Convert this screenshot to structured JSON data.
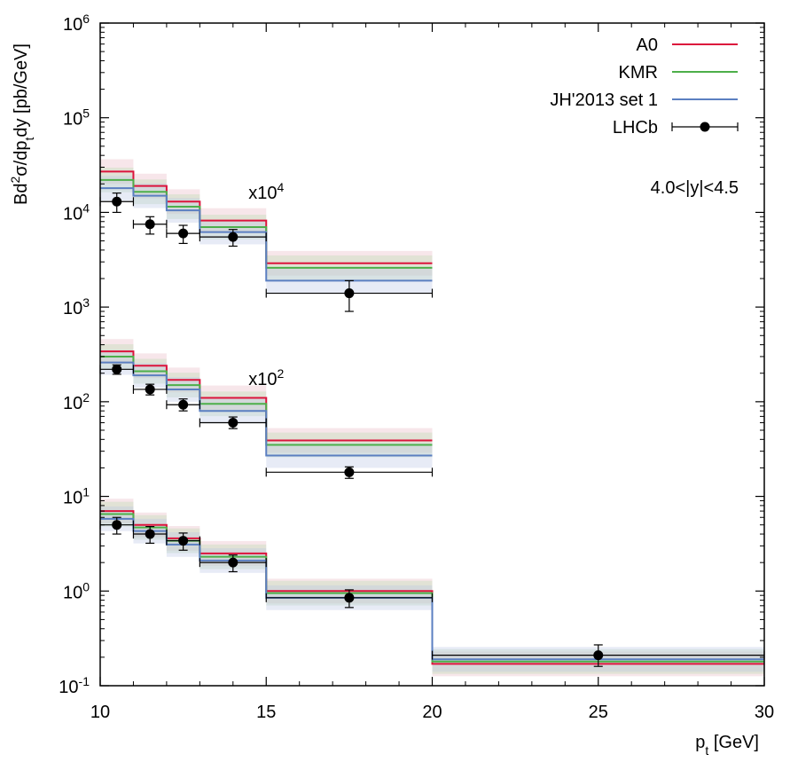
{
  "chart_data": {
    "type": "step",
    "title": "",
    "xlabel_main": "p",
    "xlabel_sub": "t",
    "xlabel_unit": " [GeV]",
    "ylabel_parts": [
      "Bd",
      "2",
      "σ/dp",
      "t",
      "dy [pb/GeV]"
    ],
    "xlim": [
      10,
      30
    ],
    "ylim": [
      0.1,
      1000000
    ],
    "yscale": "log",
    "x_ticks": [
      10,
      15,
      20,
      25,
      30
    ],
    "y_ticks": [
      {
        "value": 0.1,
        "base": "10",
        "exp": "-1"
      },
      {
        "value": 1,
        "base": "10",
        "exp": "0"
      },
      {
        "value": 10,
        "base": "10",
        "exp": "1"
      },
      {
        "value": 100,
        "base": "10",
        "exp": "2"
      },
      {
        "value": 1000,
        "base": "10",
        "exp": "3"
      },
      {
        "value": 10000,
        "base": "10",
        "exp": "4"
      },
      {
        "value": 100000,
        "base": "10",
        "exp": "5"
      },
      {
        "value": 1000000,
        "base": "10",
        "exp": "6"
      }
    ],
    "rapidity_label": "4.0<|y|<4.5",
    "groups": [
      {
        "scale_label_base": "x10",
        "scale_label_exp": "4",
        "label_at": [
          15,
          14000
        ],
        "bins": [
          10,
          11,
          12,
          13,
          15,
          20
        ],
        "series": [
          {
            "name": "A0",
            "values": [
              27000,
              19000,
              13000,
              8200,
              2900
            ]
          },
          {
            "name": "KMR",
            "values": [
              22000,
              16500,
              11500,
              7000,
              2600
            ]
          },
          {
            "name": "JH'2013 set 1",
            "values": [
              18000,
              15000,
              10500,
              6200,
              1900
            ]
          }
        ],
        "data": {
          "x": [
            10.5,
            11.5,
            12.5,
            14,
            17.5
          ],
          "y": [
            13000,
            7500,
            6000,
            5500,
            1400
          ],
          "yerr_low": [
            10000,
            5900,
            4700,
            4400,
            900
          ],
          "yerr_high": [
            16000,
            9000,
            7300,
            6600,
            1900
          ]
        }
      },
      {
        "scale_label_base": "x10",
        "scale_label_exp": "2",
        "label_at": [
          15,
          150
        ],
        "bins": [
          10,
          11,
          12,
          13,
          15,
          20
        ],
        "series": [
          {
            "name": "A0",
            "values": [
              340,
              240,
              170,
              110,
              39
            ]
          },
          {
            "name": "KMR",
            "values": [
              300,
              210,
              150,
              95,
              35
            ]
          },
          {
            "name": "JH'2013 set 1",
            "values": [
              260,
              190,
              135,
              80,
              27
            ]
          }
        ],
        "data": {
          "x": [
            10.5,
            11.5,
            12.5,
            14,
            17.5
          ],
          "y": [
            220,
            135,
            93,
            60,
            18
          ],
          "yerr_low": [
            195,
            118,
            80,
            52,
            15.5
          ],
          "yerr_high": [
            245,
            153,
            107,
            69,
            20.5
          ]
        }
      },
      {
        "scale_label_base": "",
        "scale_label_exp": "",
        "label_at": null,
        "bins": [
          10,
          11,
          12,
          13,
          15,
          20,
          30
        ],
        "series": [
          {
            "name": "A0",
            "values": [
              7.0,
              5.0,
              3.6,
              2.5,
              1.0,
              0.17
            ]
          },
          {
            "name": "KMR",
            "values": [
              6.5,
              4.7,
              3.4,
              2.3,
              0.95,
              0.18
            ]
          },
          {
            "name": "JH'2013 set 1",
            "values": [
              5.8,
              4.3,
              3.1,
              2.1,
              0.85,
              0.19
            ]
          }
        ],
        "data": {
          "x": [
            10.5,
            11.5,
            12.5,
            14,
            17.5,
            25
          ],
          "y": [
            5.0,
            4.0,
            3.4,
            2.0,
            0.85,
            0.21
          ],
          "yerr_low": [
            4.0,
            3.2,
            2.7,
            1.6,
            0.67,
            0.16
          ],
          "yerr_high": [
            6.0,
            4.8,
            4.1,
            2.4,
            1.03,
            0.27
          ]
        }
      }
    ],
    "legend": [
      {
        "name": "A0",
        "color": "#dc143c",
        "kind": "line"
      },
      {
        "name": "KMR",
        "color": "#4daf4a",
        "kind": "line"
      },
      {
        "name": "JH'2013 set 1",
        "color": "#5b7fc1",
        "kind": "line"
      },
      {
        "name": "LHCb",
        "color": "#000000",
        "kind": "points"
      }
    ],
    "band_colors": {
      "A0": "#e8b6c4",
      "KMR": "#b7d9b0",
      "JH'2013 set 1": "#b9c7e6"
    }
  }
}
